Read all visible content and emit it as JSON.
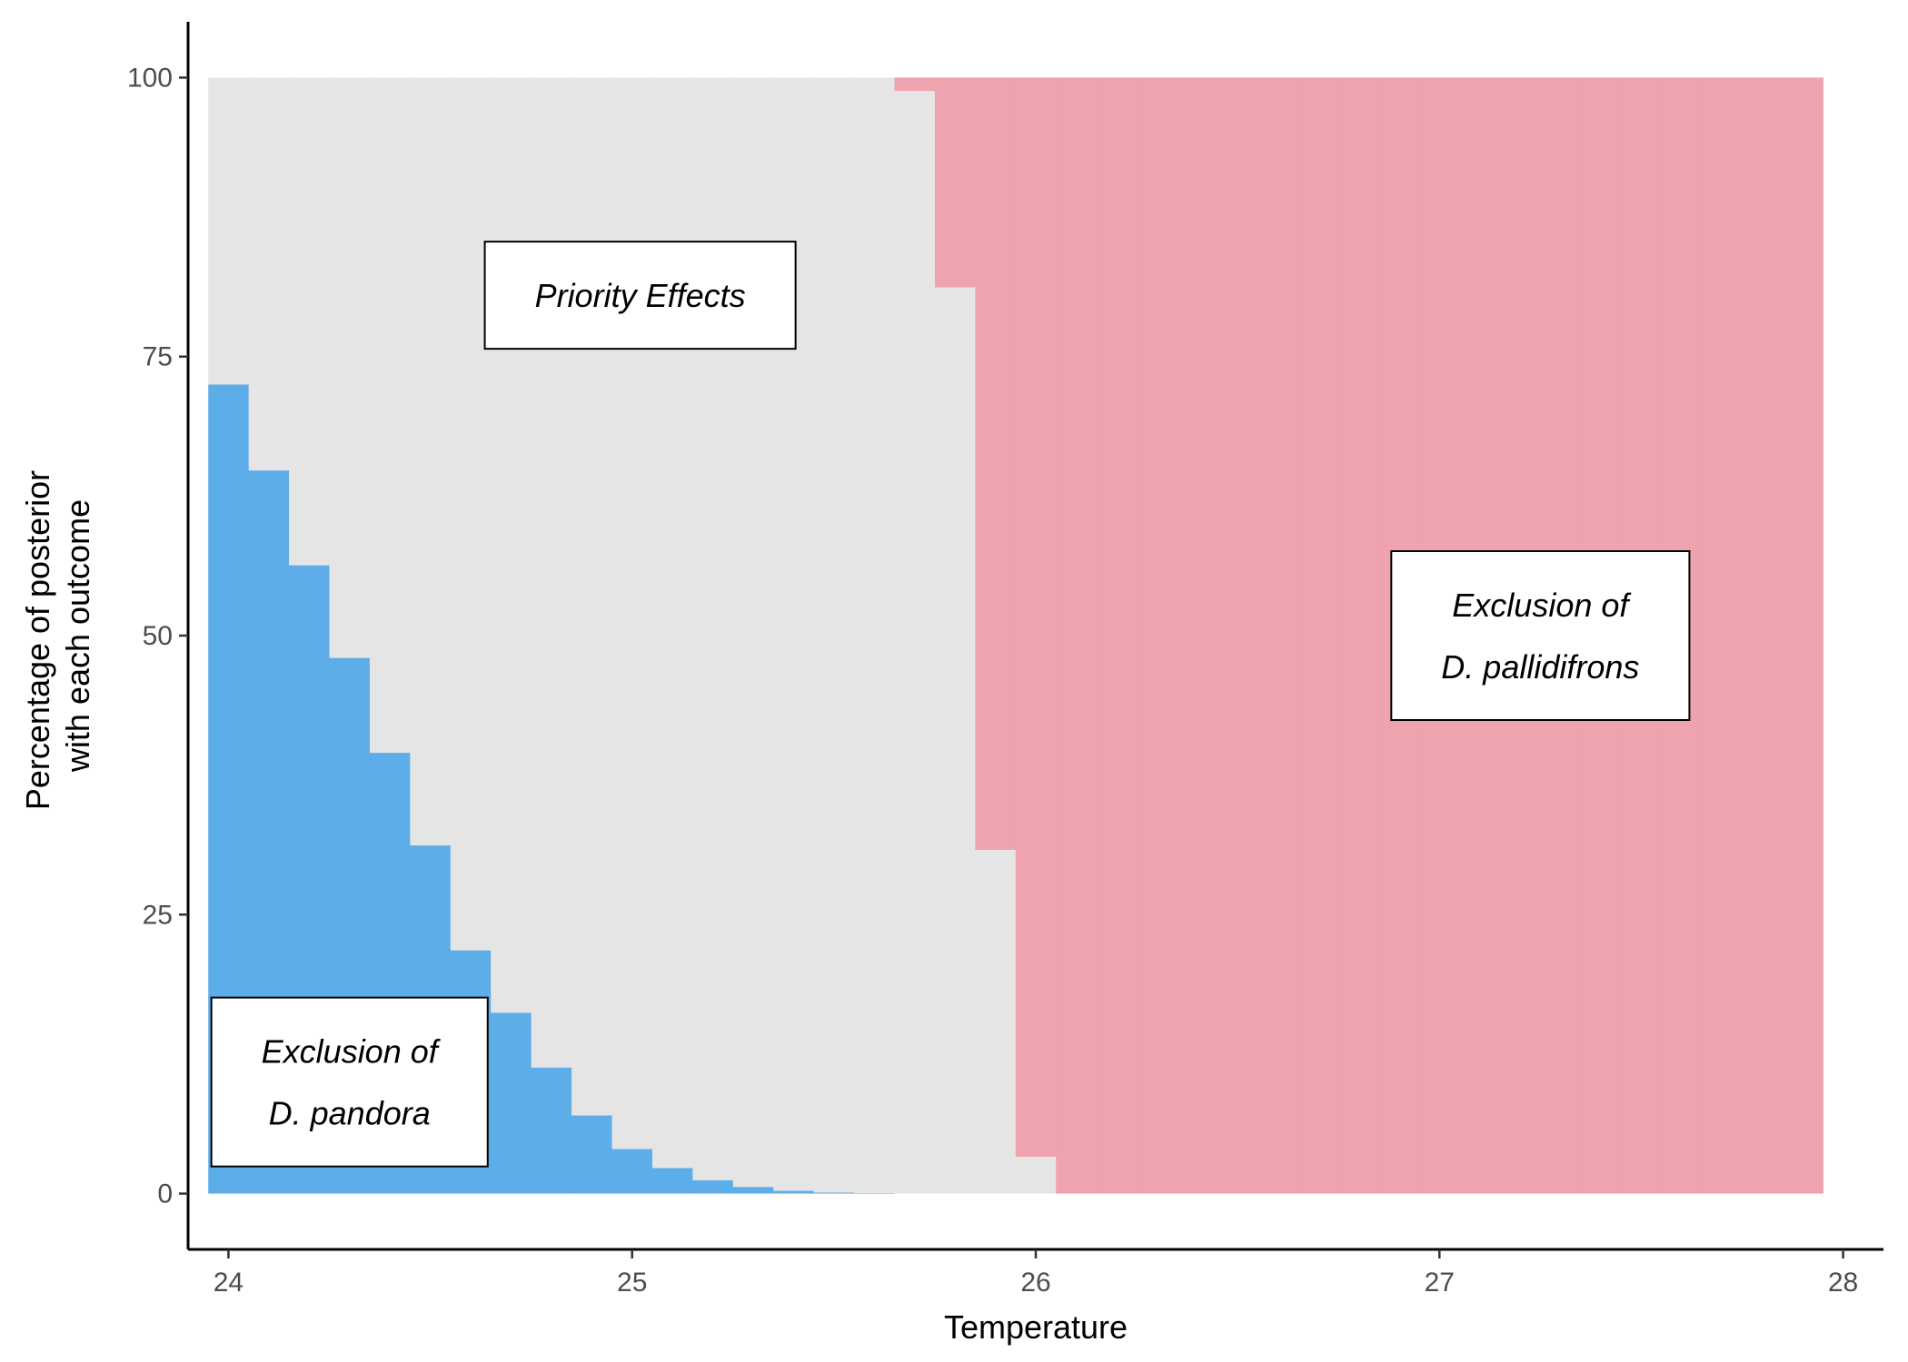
{
  "chart_data": {
    "type": "bar",
    "stacked": true,
    "xlabel": "Temperature",
    "ylabel_lines": [
      "Percentage of posterior",
      "with each outcome"
    ],
    "xlim": [
      23.9,
      28.1
    ],
    "ylim": [
      -5,
      105
    ],
    "x_ticks": [
      24,
      25,
      26,
      27,
      28
    ],
    "y_ticks": [
      0,
      25,
      50,
      75,
      100
    ],
    "bin_width": 0.1,
    "x": [
      24.0,
      24.1,
      24.2,
      24.3,
      24.4,
      24.5,
      24.6,
      24.7,
      24.8,
      24.9,
      25.0,
      25.1,
      25.2,
      25.3,
      25.4,
      25.5,
      25.6,
      25.7,
      25.8,
      25.9,
      26.0,
      26.1,
      26.2,
      26.3,
      26.4,
      26.5,
      26.6,
      26.7,
      26.8,
      26.9,
      27.0,
      27.1,
      27.2,
      27.3,
      27.4,
      27.5,
      27.6,
      27.7,
      27.8,
      27.9
    ],
    "series": [
      {
        "key": "pandora",
        "color": "#5dade9",
        "values": [
          72.5,
          64.8,
          56.3,
          48.0,
          39.5,
          31.2,
          21.8,
          16.2,
          11.3,
          7.0,
          4.0,
          2.3,
          1.2,
          0.6,
          0.25,
          0.1,
          0.05,
          0,
          0,
          0,
          0,
          0,
          0,
          0,
          0,
          0,
          0,
          0,
          0,
          0,
          0,
          0,
          0,
          0,
          0,
          0,
          0,
          0,
          0,
          0
        ]
      },
      {
        "key": "priority",
        "color": "#e5e5e5",
        "values": [
          27.5,
          35.2,
          43.7,
          52.0,
          60.5,
          68.8,
          78.2,
          83.8,
          88.7,
          93.0,
          96.0,
          97.7,
          98.8,
          99.4,
          99.75,
          99.9,
          99.95,
          98.8,
          81.2,
          30.8,
          3.3,
          0,
          0,
          0,
          0,
          0,
          0,
          0,
          0,
          0,
          0,
          0,
          0,
          0,
          0,
          0,
          0,
          0,
          0,
          0
        ]
      },
      {
        "key": "pallidifrons",
        "color": "#efa3ae",
        "values": [
          0,
          0,
          0,
          0,
          0,
          0,
          0,
          0,
          0,
          0,
          0,
          0,
          0,
          0,
          0,
          0,
          0,
          1.2,
          18.8,
          69.2,
          96.7,
          100,
          100,
          100,
          100,
          100,
          100,
          100,
          100,
          100,
          100,
          100,
          100,
          100,
          100,
          100,
          100,
          100,
          100,
          100
        ]
      }
    ],
    "annotations": [
      {
        "key": "priority",
        "lines": [
          "Priority Effects"
        ],
        "x": 25.02,
        "y": 80.5
      },
      {
        "key": "pallidifrons",
        "lines": [
          "Exclusion of",
          "D. pallidifrons"
        ],
        "x": 27.25,
        "y": 50
      },
      {
        "key": "pandora",
        "lines": [
          "Exclusion of",
          "D. pandora"
        ],
        "x": 24.3,
        "y": 10
      }
    ]
  }
}
